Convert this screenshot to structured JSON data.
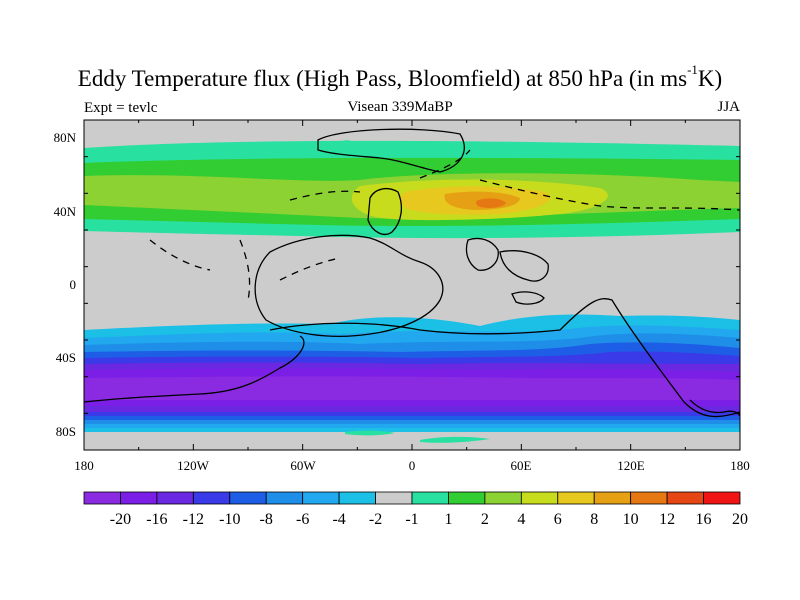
{
  "title": {
    "main": "Eddy Temperature flux (High Pass, Bloomfield) at 850 hPa (in ms",
    "superscript": "-1",
    "unit_suffix": "K)"
  },
  "subtitles": {
    "left": "Expt = tevlc",
    "center": "Visean 339MaBP",
    "right": "JJA"
  },
  "map": {
    "background_color": "#cccccc",
    "x_tick_labels": [
      "180",
      "120W",
      "60W",
      "0",
      "60E",
      "120E",
      "180"
    ],
    "y_tick_labels": [
      "80N",
      "40N",
      "0",
      "40S",
      "80S"
    ]
  },
  "colorbar": {
    "colors": [
      "#8a2be2",
      "#7b1fe6",
      "#6a28e0",
      "#3a3ae8",
      "#1e5ee6",
      "#1e8ee8",
      "#22a8ee",
      "#1cc0e6",
      "#cccccc",
      "#28e0a0",
      "#32cd32",
      "#8cd232",
      "#c8dc1e",
      "#e6c81e",
      "#e6a014",
      "#e67814",
      "#e64614",
      "#f01414"
    ],
    "labels": [
      "-20",
      "-16",
      "-12",
      "-10",
      "-8",
      "-6",
      "-4",
      "-2",
      "-1",
      "1",
      "2",
      "4",
      "6",
      "8",
      "10",
      "12",
      "16",
      "20"
    ]
  }
}
